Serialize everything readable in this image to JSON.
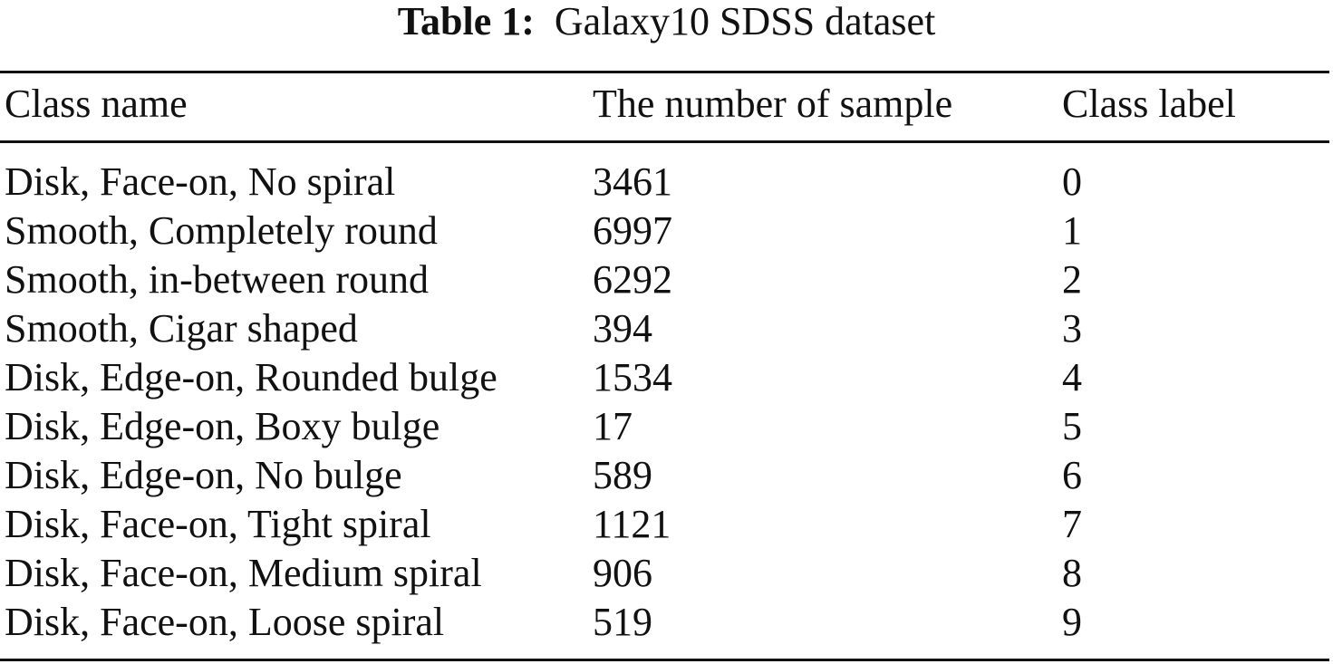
{
  "caption": {
    "label": "Table 1:",
    "title": "Galaxy10 SDSS dataset"
  },
  "table": {
    "headers": [
      "Class name",
      "The number of sample",
      "Class label"
    ],
    "rows": [
      [
        "Disk, Face-on, No spiral",
        "3461",
        "0"
      ],
      [
        "Smooth, Completely round",
        "6997",
        "1"
      ],
      [
        "Smooth, in-between round",
        "6292",
        "2"
      ],
      [
        "Smooth, Cigar shaped",
        "394",
        "3"
      ],
      [
        "Disk, Edge-on, Rounded bulge",
        "1534",
        "4"
      ],
      [
        "Disk, Edge-on, Boxy bulge",
        "17",
        "5"
      ],
      [
        "Disk, Edge-on, No bulge",
        "589",
        "6"
      ],
      [
        "Disk, Face-on, Tight spiral",
        "1121",
        "7"
      ],
      [
        "Disk, Face-on, Medium spiral",
        "906",
        "8"
      ],
      [
        "Disk, Face-on, Loose spiral",
        "519",
        "9"
      ]
    ]
  }
}
